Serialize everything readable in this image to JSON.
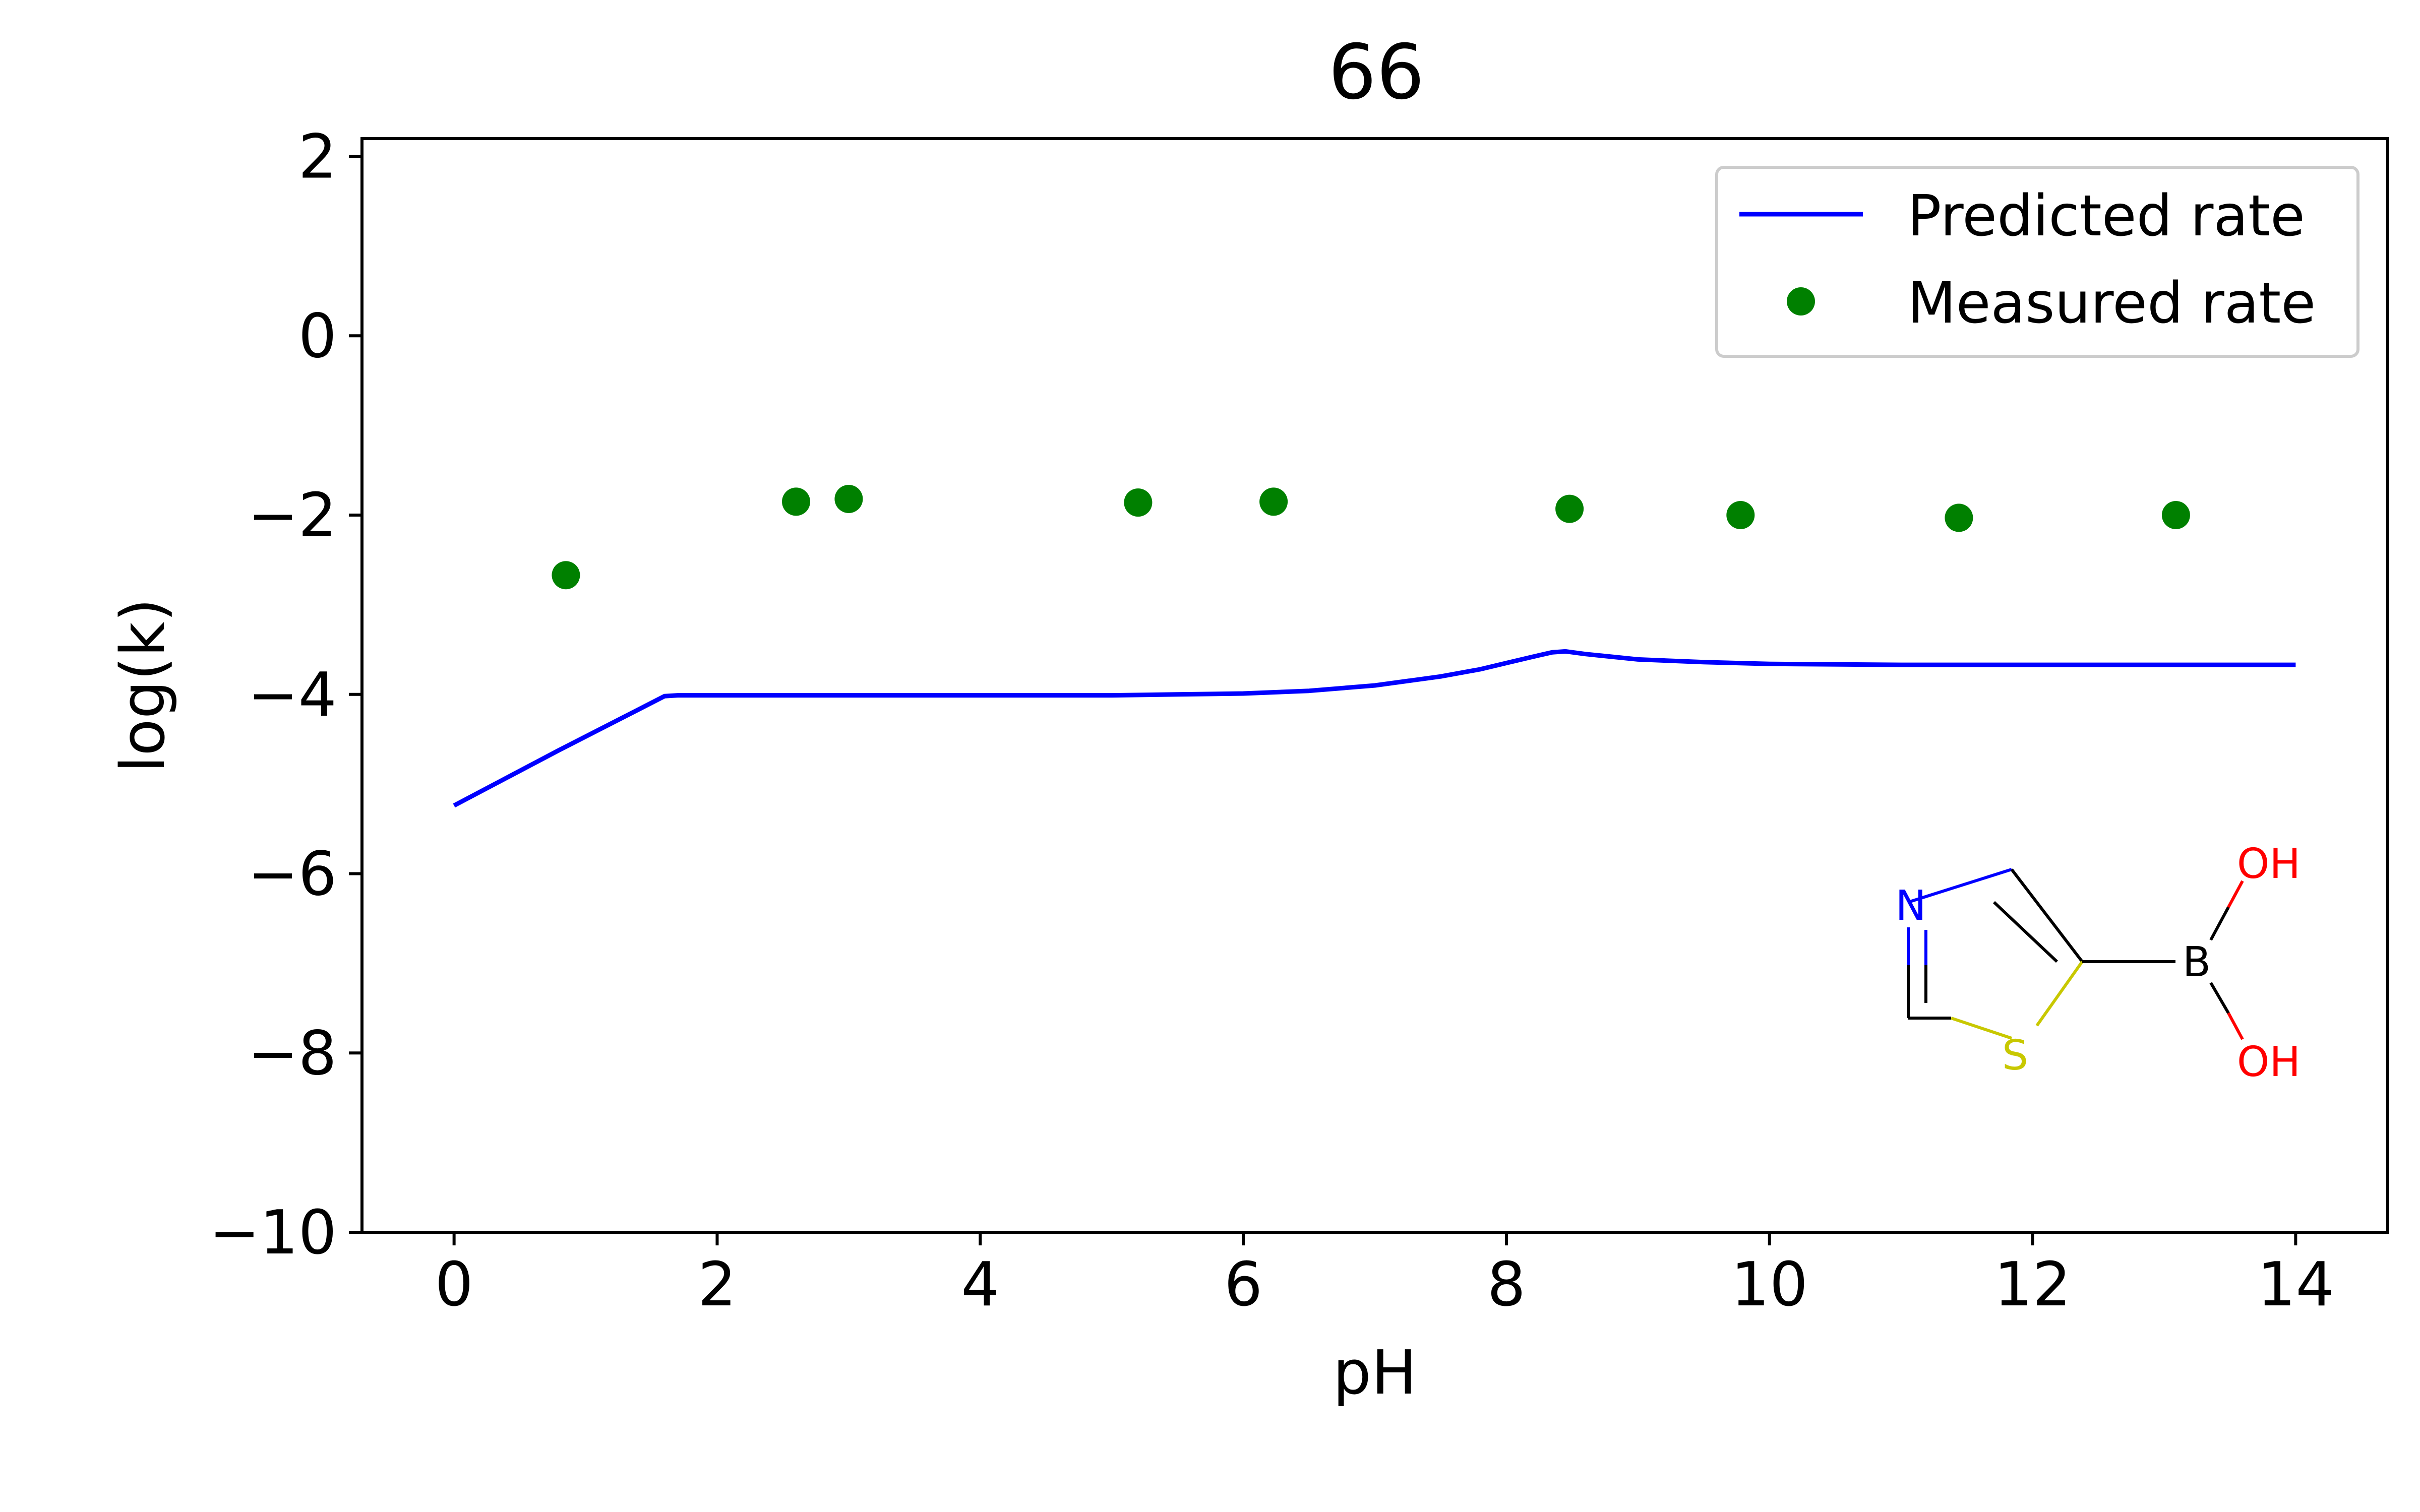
{
  "chart_data": {
    "type": "line",
    "title": "66",
    "xlabel": "pH",
    "ylabel": "log(k)",
    "xlim": [
      -0.7,
      14.7
    ],
    "ylim": [
      -10,
      2.2
    ],
    "xticks": [
      0,
      2,
      4,
      6,
      8,
      10,
      12,
      14
    ],
    "yticks": [
      2,
      0,
      -2,
      -4,
      -6,
      -8,
      -10
    ],
    "xtick_labels": [
      "0",
      "2",
      "4",
      "6",
      "8",
      "10",
      "12",
      "14"
    ],
    "ytick_labels": [
      "2",
      "0",
      "−2",
      "−4",
      "−6",
      "−8",
      "−10"
    ],
    "grid": false,
    "legend_position": "top-right",
    "series": [
      {
        "name": "Predicted rate",
        "kind": "line",
        "color": "#0000ff",
        "x": [
          0,
          0.4,
          0.8,
          1.2,
          1.6,
          1.7,
          2.0,
          3.0,
          4.0,
          5.0,
          5.5,
          6.0,
          6.5,
          7.0,
          7.5,
          7.8,
          8.0,
          8.2,
          8.35,
          8.45,
          8.6,
          9.0,
          9.5,
          10.0,
          11.0,
          12.0,
          13.0,
          14.0
        ],
        "y": [
          -5.24,
          -4.93,
          -4.62,
          -4.32,
          -4.02,
          -4.01,
          -4.01,
          -4.01,
          -4.01,
          -4.01,
          -4.0,
          -3.99,
          -3.96,
          -3.9,
          -3.8,
          -3.72,
          -3.65,
          -3.58,
          -3.53,
          -3.52,
          -3.55,
          -3.61,
          -3.64,
          -3.66,
          -3.67,
          -3.67,
          -3.67,
          -3.67
        ]
      },
      {
        "name": "Measured rate",
        "kind": "scatter",
        "color": "#008000",
        "x": [
          0.85,
          2.6,
          3.0,
          5.2,
          6.23,
          8.48,
          9.78,
          11.44,
          13.09
        ],
        "y": [
          -2.67,
          -1.85,
          -1.82,
          -1.86,
          -1.85,
          -1.93,
          -2.0,
          -2.03,
          -2.0
        ]
      }
    ],
    "molecule": {
      "atom_labels": {
        "nitrogen": "N",
        "sulfur": "S",
        "boron": "B",
        "oh_top": "OH",
        "oh_bottom": "OH"
      },
      "colors": {
        "nitrogen": "#0000ff",
        "sulfur": "#c8c800",
        "oxygen": "#ff0000",
        "bond": "#000000"
      }
    }
  }
}
